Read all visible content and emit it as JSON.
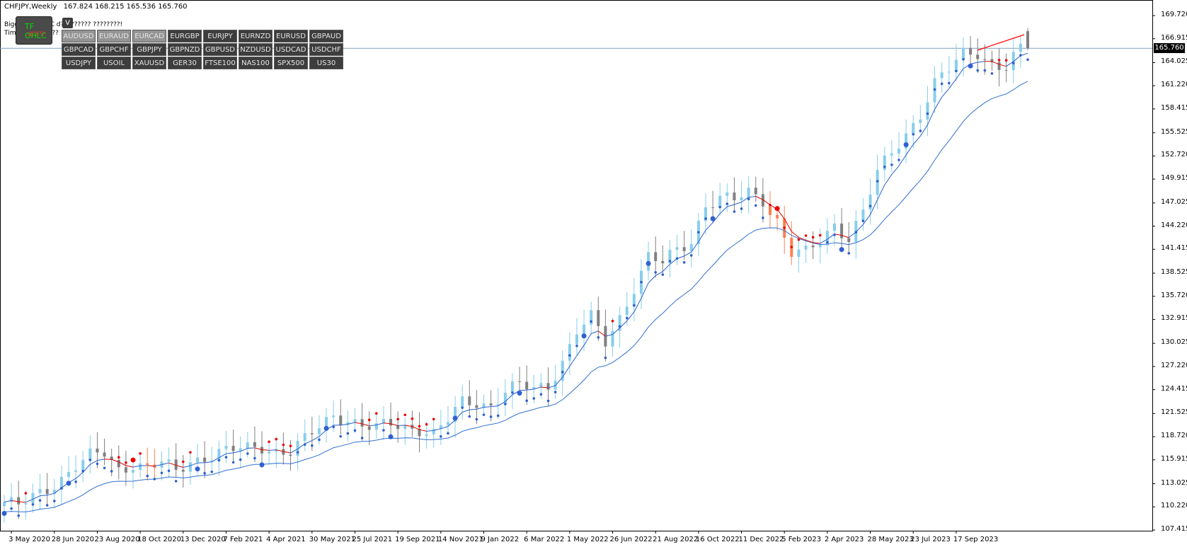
{
  "header": {
    "symbol": "CHFJPY,Weekly",
    "ohlc": "167.824 168.215 165.536 165.760",
    "info_line_1": "Bigger TF OHLC d????????? ????????!",
    "info_line_2": "TimeFrame ?????"
  },
  "tf_widget": {
    "label": "TF OHLC",
    "sub": "d????"
  },
  "v_button": "V",
  "symbols": [
    "AUDUSD",
    "EURAUD",
    "EURCAD",
    "EURGBP",
    "EURJPY",
    "EURNZD",
    "EURUSD",
    "GBPAUD",
    "GBPCAD",
    "GBPCHF",
    "GBPJPY",
    "GBPNZD",
    "GBPUSD",
    "NZDUSD",
    "USDCAD",
    "USDCHF",
    "USDJPY",
    "USOIL",
    "XAUUSD",
    "GER30",
    "FTSE100",
    "NAS100",
    "SPX500",
    "US30"
  ],
  "current_price": "165.760",
  "colors": {
    "bull_candle": "#87ceeb",
    "bear_candle": "#808080",
    "bear_candle_red": "#ff7f50",
    "ma_fast_up": "#2a5fcf",
    "ma_fast_down": "#e00000",
    "ma_slow": "#3070d0",
    "psar_up": "#3060d0",
    "psar_down": "#ee0000",
    "price_line": "#7f9fbf"
  },
  "chart_data": {
    "type": "candlestick",
    "title": "CHFJPY,Weekly",
    "y_ticks": [
      "169.720",
      "166.915",
      "164.025",
      "161.220",
      "158.415",
      "155.525",
      "152.720",
      "149.915",
      "147.025",
      "144.220",
      "141.415",
      "138.525",
      "135.720",
      "132.915",
      "130.025",
      "127.220",
      "124.415",
      "121.525",
      "118.720",
      "115.915",
      "113.025",
      "110.220",
      "107.415"
    ],
    "ylim": [
      107.0,
      171.0
    ],
    "x_ticks": [
      "3 May 2020",
      "28 Jun 2020",
      "23 Aug 2020",
      "18 Oct 2020",
      "13 Dec 2020",
      "7 Feb 2021",
      "4 Apr 2021",
      "30 May 2021",
      "25 Jul 2021",
      "19 Sep 2021",
      "14 Nov 2021",
      "9 Jan 2022",
      "6 Mar 2022",
      "1 May 2022",
      "26 Jun 2022",
      "21 Aug 2022",
      "16 Oct 2022",
      "11 Dec 2022",
      "5 Feb 2023",
      "2 Apr 2023",
      "28 May 2023",
      "23 Jul 2023",
      "17 Sep 2023"
    ],
    "close_path": [
      [
        0,
        110.8
      ],
      [
        2,
        110.2
      ],
      [
        4,
        111.3
      ],
      [
        6,
        112.5
      ],
      [
        8,
        113.8
      ],
      [
        10,
        115.2
      ],
      [
        12,
        116.2
      ],
      [
        14,
        116.6
      ],
      [
        16,
        114.8
      ],
      [
        18,
        115.6
      ],
      [
        20,
        115.0
      ],
      [
        22,
        115.4
      ],
      [
        24,
        114.4
      ],
      [
        26,
        115.8
      ],
      [
        28,
        116.4
      ],
      [
        30,
        116.8
      ],
      [
        32,
        117.0
      ],
      [
        34,
        117.2
      ],
      [
        36,
        117.6
      ],
      [
        38,
        117.1
      ],
      [
        40,
        116.9
      ],
      [
        42,
        118.2
      ],
      [
        44,
        119.8
      ],
      [
        46,
        121.4
      ],
      [
        48,
        121.0
      ],
      [
        50,
        120.0
      ],
      [
        52,
        119.6
      ],
      [
        54,
        120.2
      ],
      [
        56,
        120.0
      ],
      [
        58,
        119.8
      ],
      [
        60,
        119.0
      ],
      [
        62,
        120.6
      ],
      [
        64,
        122.8
      ],
      [
        66,
        123.0
      ],
      [
        68,
        122.6
      ],
      [
        70,
        124.2
      ],
      [
        72,
        124.8
      ],
      [
        74,
        124.4
      ],
      [
        76,
        125.0
      ],
      [
        78,
        128.0
      ],
      [
        80,
        131.5
      ],
      [
        82,
        133.0
      ],
      [
        84,
        130.0
      ],
      [
        86,
        133.2
      ],
      [
        88,
        137.0
      ],
      [
        90,
        140.5
      ],
      [
        92,
        139.6
      ],
      [
        94,
        141.2
      ],
      [
        96,
        142.5
      ],
      [
        98,
        147.0
      ],
      [
        100,
        147.6
      ],
      [
        102,
        147.2
      ],
      [
        104,
        148.2
      ],
      [
        106,
        147.5
      ],
      [
        108,
        145.0
      ],
      [
        110,
        141.0
      ],
      [
        112,
        140.8
      ],
      [
        114,
        142.2
      ],
      [
        116,
        144.5
      ],
      [
        118,
        143.0
      ],
      [
        120,
        146.0
      ],
      [
        122,
        150.5
      ],
      [
        124,
        153.0
      ],
      [
        126,
        155.5
      ],
      [
        128,
        158.0
      ],
      [
        130,
        161.5
      ],
      [
        132,
        163.0
      ],
      [
        134,
        165.0
      ],
      [
        136,
        165.4
      ],
      [
        138,
        164.0
      ],
      [
        140,
        163.4
      ],
      [
        142,
        165.5
      ],
      [
        143,
        165.76
      ]
    ],
    "n_bars": 144,
    "last_ohlc": {
      "open": 167.824,
      "high": 168.215,
      "low": 165.536,
      "close": 165.76
    }
  }
}
